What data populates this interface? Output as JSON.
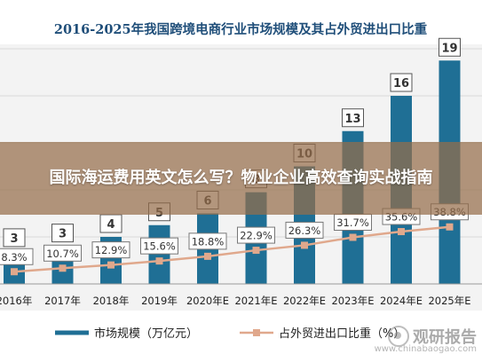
{
  "chart_data": {
    "type": "bar",
    "title": "2016-2025年我国跨境电商行业市场规模及其占外贸进出口比重",
    "categories": [
      "2016年",
      "2017年",
      "2018年",
      "2019年",
      "2020年E",
      "2021年E",
      "2022年E",
      "2023年E",
      "2024年E",
      "2025年E"
    ],
    "bar_labels": [
      "3",
      "3",
      "4",
      "5",
      "6",
      "8",
      "10",
      "13",
      "16",
      "19"
    ],
    "series": [
      {
        "name": "市场规模（万亿元）",
        "kind": "bar",
        "color": "#1f6f95",
        "values": [
          2.8,
          3.2,
          4.0,
          5.0,
          6.0,
          7.8,
          10.0,
          13.0,
          16.0,
          19.0
        ]
      },
      {
        "name": "占外贸进出口比重（%）",
        "kind": "line",
        "color": "#e0a88c",
        "values": [
          8.3,
          10.7,
          12.9,
          15.6,
          18.8,
          22.9,
          26.3,
          31.7,
          35.6,
          38.8
        ],
        "labels": [
          "8.3%",
          "10.7%",
          "12.9%",
          "15.6%",
          "18.8%",
          "22.9%",
          "26.3%",
          "31.7%",
          "35.6%",
          "38.8%"
        ]
      }
    ],
    "ylim": [
      0,
      20
    ],
    "y2lim": [
      0,
      160
    ],
    "grid": true,
    "legend_position": "bottom"
  },
  "overlay": {
    "headline": "国际海运费用英文怎么写？物业企业高效查询实战指南"
  },
  "watermark": {
    "name": "观研报告",
    "url": "www.chinabaogao.com"
  }
}
